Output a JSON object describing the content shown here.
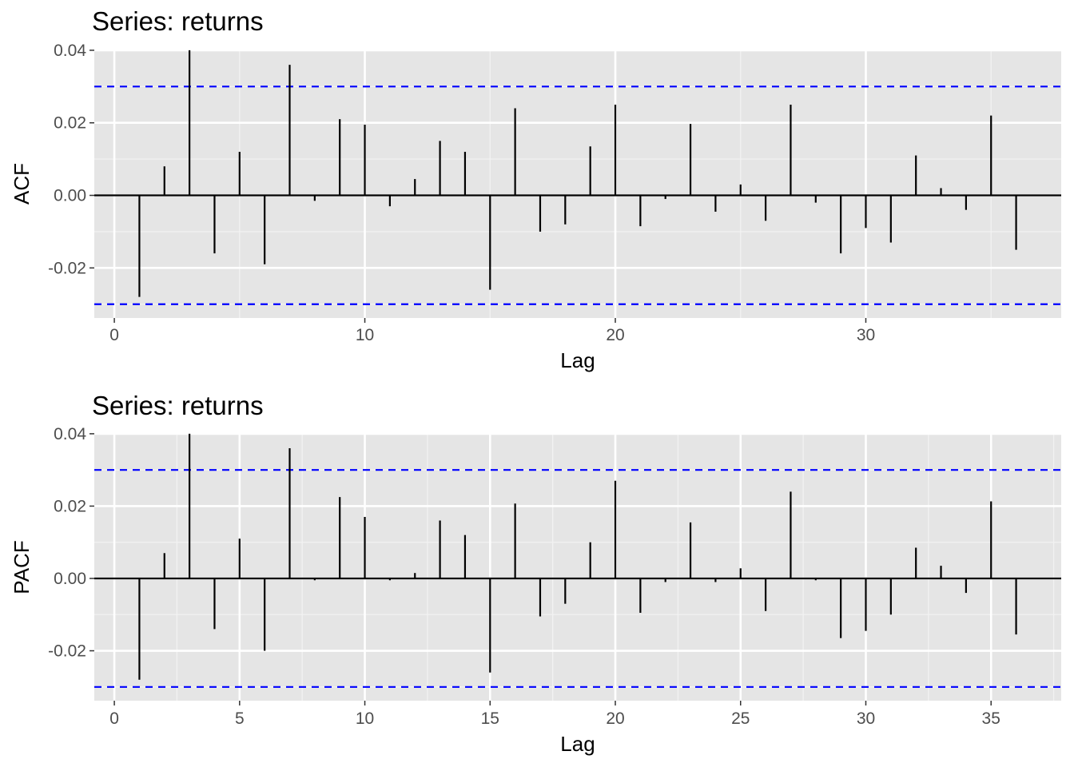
{
  "chart_data": [
    {
      "type": "bar",
      "title": "Series: returns",
      "xlabel": "Lag",
      "ylabel": "ACF",
      "xlim": [
        -0.8,
        37.8
      ],
      "ylim": [
        -0.0338,
        0.0402
      ],
      "x_ticks": [
        0,
        10,
        20,
        30
      ],
      "y_ticks": [
        0.04,
        0.02,
        0.0,
        -0.02
      ],
      "y_tick_labels": [
        "0.04",
        "0.02",
        "0.00",
        "-0.02"
      ],
      "ci": [
        0.03,
        -0.03
      ],
      "grid": true,
      "lags": [
        1,
        2,
        3,
        4,
        5,
        6,
        7,
        8,
        9,
        10,
        11,
        12,
        13,
        14,
        15,
        16,
        17,
        18,
        19,
        20,
        21,
        22,
        23,
        24,
        25,
        26,
        27,
        28,
        29,
        30,
        31,
        32,
        33,
        34,
        35,
        36
      ],
      "values": [
        -0.028,
        0.008,
        0.04,
        -0.016,
        0.012,
        -0.019,
        0.036,
        -0.0015,
        0.021,
        0.0195,
        -0.003,
        0.0045,
        0.015,
        0.012,
        -0.026,
        0.024,
        -0.01,
        -0.008,
        0.0135,
        0.025,
        -0.0085,
        -0.001,
        0.0197,
        -0.0045,
        0.003,
        -0.007,
        0.025,
        -0.002,
        -0.016,
        -0.009,
        -0.013,
        0.011,
        0.002,
        -0.004,
        0.022,
        -0.015
      ]
    },
    {
      "type": "bar",
      "title": "Series: returns",
      "xlabel": "Lag",
      "ylabel": "PACF",
      "xlim": [
        -0.8,
        37.8
      ],
      "ylim": [
        -0.0338,
        0.0402
      ],
      "x_ticks": [
        0,
        5,
        10,
        15,
        20,
        25,
        30,
        35
      ],
      "y_ticks": [
        0.04,
        0.02,
        0.0,
        -0.02
      ],
      "y_tick_labels": [
        "0.04",
        "0.02",
        "0.00",
        "-0.02"
      ],
      "ci": [
        0.03,
        -0.03
      ],
      "grid": true,
      "lags": [
        1,
        2,
        3,
        4,
        5,
        6,
        7,
        8,
        9,
        10,
        11,
        12,
        13,
        14,
        15,
        16,
        17,
        18,
        19,
        20,
        21,
        22,
        23,
        24,
        25,
        26,
        27,
        28,
        29,
        30,
        31,
        32,
        33,
        34,
        35,
        36
      ],
      "values": [
        -0.028,
        0.007,
        0.04,
        -0.014,
        0.011,
        -0.02,
        0.036,
        -0.0005,
        0.0225,
        0.017,
        -0.0005,
        0.0015,
        0.016,
        0.012,
        -0.026,
        0.0207,
        -0.0105,
        -0.007,
        0.01,
        0.027,
        -0.0095,
        -0.001,
        0.0155,
        -0.001,
        0.0028,
        -0.009,
        0.024,
        -0.0005,
        -0.0165,
        -0.0145,
        -0.01,
        0.0085,
        0.0035,
        -0.004,
        0.0213,
        -0.0155
      ]
    }
  ]
}
